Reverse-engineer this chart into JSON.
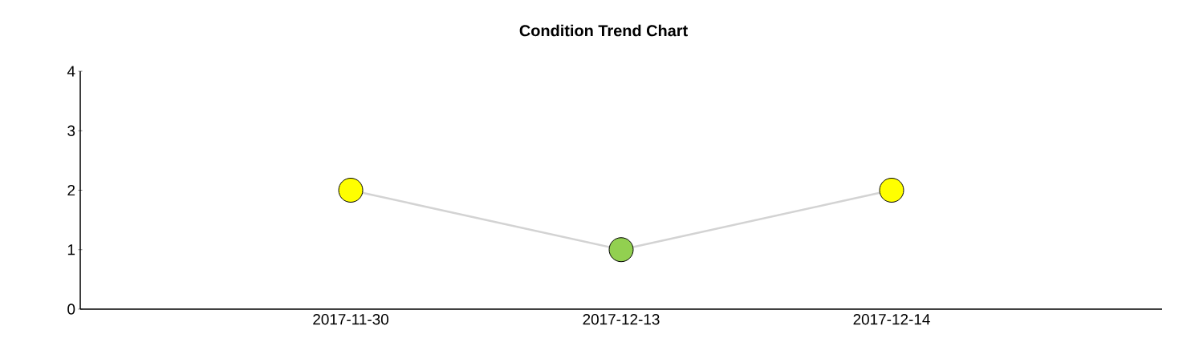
{
  "chart_data": {
    "type": "line",
    "title": "Condition Trend Chart",
    "categories": [
      "2017-11-30",
      "2017-12-13",
      "2017-12-14"
    ],
    "series": [
      {
        "color": "#d3d3d3",
        "values": [
          2,
          1,
          2
        ],
        "colors": [
          "#ffff00",
          "#92d050",
          "#ffff00"
        ]
      }
    ],
    "ylim": [
      0,
      4
    ],
    "yticks": [
      0,
      1,
      2,
      3,
      4
    ],
    "marker": "circle"
  }
}
